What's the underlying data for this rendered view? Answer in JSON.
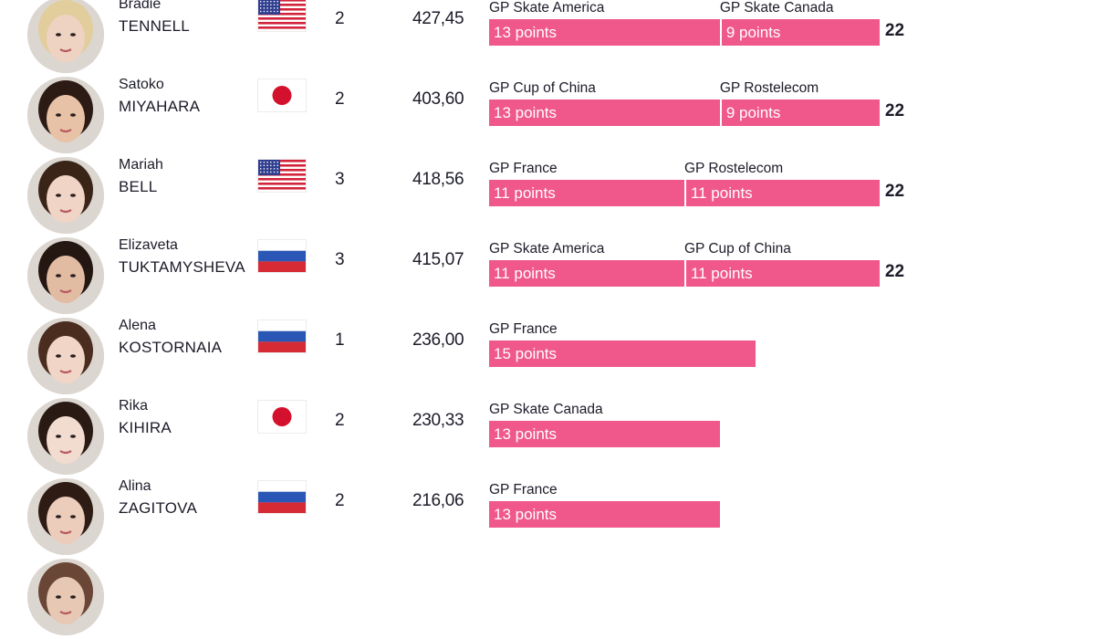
{
  "chart_data": {
    "type": "bar",
    "stacked": true,
    "xlim": [
      0,
      22
    ],
    "columns": [
      "",
      "",
      "",
      "",
      "",
      ""
    ],
    "skaters": [
      {
        "first_name": "Bradie",
        "last_name": "TENNELL",
        "country": "USA",
        "events_count": "2",
        "score": "427,45",
        "events": [
          {
            "name": "GP Skate America",
            "points": 13,
            "label": "13 points"
          },
          {
            "name": "GP Skate Canada",
            "points": 9,
            "label": "9 points"
          }
        ],
        "total": "22",
        "skin": "#efd3c2",
        "hair": "#e2cd9c"
      },
      {
        "first_name": "Satoko",
        "last_name": "MIYAHARA",
        "country": "Japan",
        "events_count": "2",
        "score": "403,60",
        "events": [
          {
            "name": "GP Cup of China",
            "points": 13,
            "label": "13 points"
          },
          {
            "name": "GP Rostelecom",
            "points": 9,
            "label": "9 points"
          }
        ],
        "total": "22",
        "skin": "#e8c2a6",
        "hair": "#2b1b14"
      },
      {
        "first_name": "Mariah",
        "last_name": "BELL",
        "country": "USA",
        "events_count": "3",
        "score": "418,56",
        "events": [
          {
            "name": "GP France",
            "points": 11,
            "label": "11 points"
          },
          {
            "name": "GP Rostelecom",
            "points": 11,
            "label": "11 points"
          }
        ],
        "total": "22",
        "skin": "#f0d4c6",
        "hair": "#3a2418"
      },
      {
        "first_name": "Elizaveta",
        "last_name": "TUKTAMYSHEVA",
        "country": "Russia",
        "events_count": "3",
        "score": "415,07",
        "events": [
          {
            "name": "GP Skate America",
            "points": 11,
            "label": "11 points"
          },
          {
            "name": "GP Cup of China",
            "points": 11,
            "label": "11 points"
          }
        ],
        "total": "22",
        "skin": "#e2bba3",
        "hair": "#241611"
      },
      {
        "first_name": "Alena",
        "last_name": "KOSTORNAIA",
        "country": "Russia",
        "events_count": "1",
        "score": "236,00",
        "events": [
          {
            "name": "GP France",
            "points": 15,
            "label": "15 points"
          }
        ],
        "total": "",
        "skin": "#f1d6c8",
        "hair": "#4a2d1f"
      },
      {
        "first_name": "Rika",
        "last_name": "KIHIRA",
        "country": "Japan",
        "events_count": "2",
        "score": "230,33",
        "events": [
          {
            "name": "GP Skate Canada",
            "points": 13,
            "label": "13 points"
          }
        ],
        "total": "",
        "skin": "#f2dcd0",
        "hair": "#2a1a14"
      },
      {
        "first_name": "Alina",
        "last_name": "ZAGITOVA",
        "country": "Russia",
        "events_count": "2",
        "score": "216,06",
        "events": [
          {
            "name": "GP France",
            "points": 13,
            "label": "13 points"
          }
        ],
        "total": "",
        "skin": "#ecccbb",
        "hair": "#2e1c14"
      },
      {
        "first_name": "",
        "last_name": "",
        "country": "",
        "events_count": "",
        "score": "",
        "events": [],
        "total": "",
        "skin": "#e6c8b4",
        "hair": "#6a4636"
      }
    ],
    "colors": {
      "bar": "#f0578a",
      "bar_text": "#ffffff",
      "text": "#1c1c2a"
    }
  }
}
